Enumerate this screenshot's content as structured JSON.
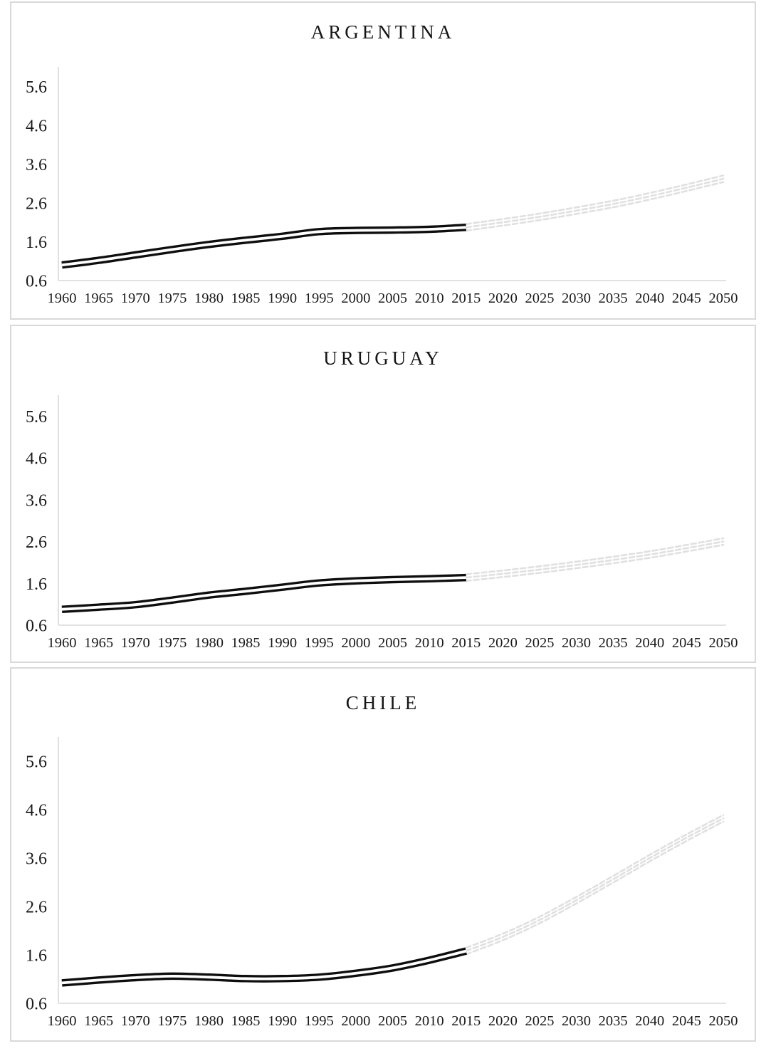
{
  "page": {
    "background_color": "#ffffff",
    "panel_border_color": "#d9d9d9",
    "axis_line_color": "#d9d9d9",
    "tick_text_color": "#1a1a1a",
    "historical_line_color": "#0e0e0e",
    "projection_line_color": "#e0e0e0"
  },
  "chart_data": [
    {
      "type": "line",
      "title": "ARGENTINA",
      "xlabel": "",
      "ylabel": "",
      "ylim": [
        0.6,
        6.1
      ],
      "yticks": [
        0.6,
        1.6,
        2.6,
        3.6,
        4.6,
        5.6
      ],
      "xticks": [
        1960,
        1965,
        1970,
        1975,
        1980,
        1985,
        1990,
        1995,
        2000,
        2005,
        2010,
        2015,
        2020,
        2025,
        2030,
        2035,
        2040,
        2045,
        2050
      ],
      "grid": "off",
      "legend": "none",
      "series": [
        {
          "name": "historical",
          "style": "double-solid-black",
          "x": [
            1960,
            1965,
            1970,
            1975,
            1980,
            1985,
            1990,
            1995,
            2000,
            2005,
            2010,
            2015
          ],
          "values": [
            1.0,
            1.12,
            1.26,
            1.4,
            1.53,
            1.64,
            1.74,
            1.86,
            1.89,
            1.9,
            1.92,
            1.97
          ]
        },
        {
          "name": "projection",
          "style": "triple-dashed-gray",
          "x": [
            2015,
            2020,
            2025,
            2030,
            2035,
            2040,
            2045,
            2050
          ],
          "values": [
            1.97,
            2.1,
            2.24,
            2.4,
            2.57,
            2.77,
            2.99,
            3.22
          ]
        }
      ]
    },
    {
      "type": "line",
      "title": "URUGUAY",
      "xlabel": "",
      "ylabel": "",
      "ylim": [
        0.6,
        6.1
      ],
      "yticks": [
        0.6,
        1.6,
        2.6,
        3.6,
        4.6,
        5.6
      ],
      "xticks": [
        1960,
        1965,
        1970,
        1975,
        1980,
        1985,
        1990,
        1995,
        2000,
        2005,
        2010,
        2015,
        2020,
        2025,
        2030,
        2035,
        2040,
        2045,
        2050
      ],
      "grid": "off",
      "legend": "none",
      "series": [
        {
          "name": "historical",
          "style": "double-solid-black",
          "x": [
            1960,
            1965,
            1970,
            1975,
            1980,
            1985,
            1990,
            1995,
            2000,
            2005,
            2010,
            2015
          ],
          "values": [
            0.98,
            1.03,
            1.09,
            1.2,
            1.32,
            1.41,
            1.51,
            1.61,
            1.66,
            1.69,
            1.71,
            1.74
          ]
        },
        {
          "name": "projection",
          "style": "triple-dashed-gray",
          "x": [
            2015,
            2020,
            2025,
            2030,
            2035,
            2040,
            2045,
            2050
          ],
          "values": [
            1.74,
            1.83,
            1.93,
            2.04,
            2.16,
            2.29,
            2.44,
            2.6
          ]
        }
      ]
    },
    {
      "type": "line",
      "title": "CHILE",
      "xlabel": "",
      "ylabel": "",
      "ylim": [
        0.6,
        6.1
      ],
      "yticks": [
        0.6,
        1.6,
        2.6,
        3.6,
        4.6,
        5.6
      ],
      "xticks": [
        1960,
        1965,
        1970,
        1975,
        1980,
        1985,
        1990,
        1995,
        2000,
        2005,
        2010,
        2015,
        2020,
        2025,
        2030,
        2035,
        2040,
        2045,
        2050
      ],
      "grid": "off",
      "legend": "none",
      "series": [
        {
          "name": "historical",
          "style": "double-solid-black",
          "x": [
            1960,
            1965,
            1970,
            1975,
            1980,
            1985,
            1990,
            1995,
            2000,
            2005,
            2010,
            2015
          ],
          "values": [
            1.02,
            1.08,
            1.13,
            1.16,
            1.14,
            1.11,
            1.11,
            1.14,
            1.22,
            1.33,
            1.49,
            1.68
          ]
        },
        {
          "name": "projection",
          "style": "triple-dashed-gray",
          "x": [
            2015,
            2020,
            2025,
            2030,
            2035,
            2040,
            2045,
            2050
          ],
          "values": [
            1.68,
            1.97,
            2.32,
            2.73,
            3.16,
            3.6,
            4.02,
            4.42
          ]
        }
      ]
    }
  ]
}
